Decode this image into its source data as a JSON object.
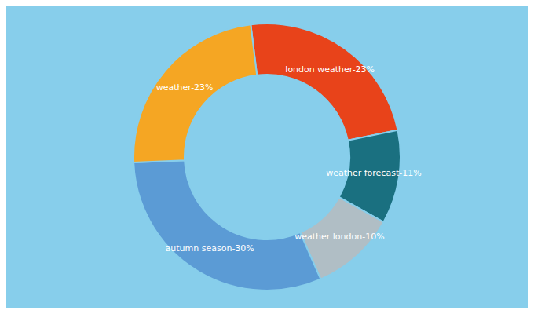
{
  "chart_data": {
    "type": "pie",
    "values": [
      23,
      11,
      10,
      30,
      23
    ],
    "value_labels": [
      "london weather-23%",
      "weather forecast-11%",
      "weather london-10%",
      "autumn season-30%",
      "weather-23%"
    ],
    "colors": [
      "#E8431A",
      "#1A7080",
      "#B0BEC5",
      "#5B9BD5",
      "#F5A623"
    ],
    "data_labels": true
  }
}
